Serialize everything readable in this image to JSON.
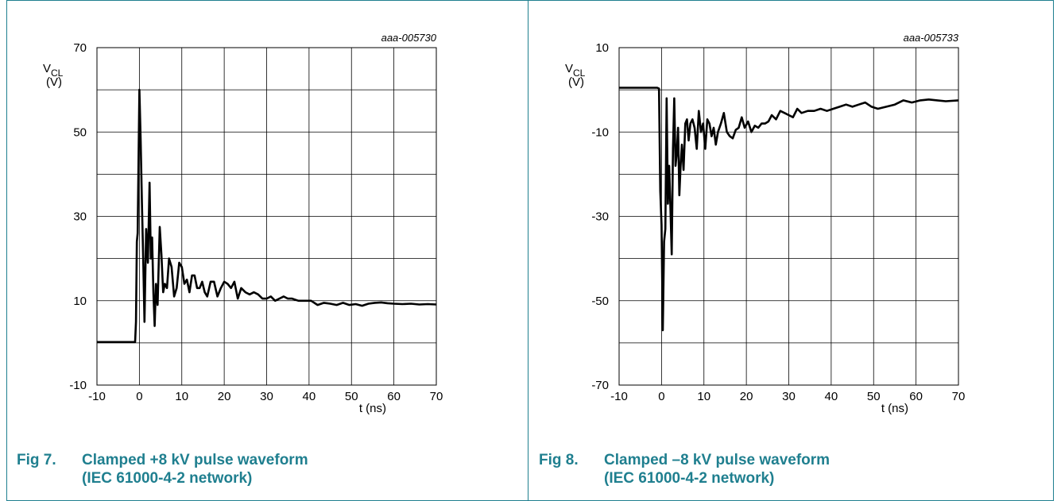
{
  "figures": [
    {
      "fig_label": "Fig 7.",
      "title_line1": "Clamped +8 kV pulse waveform",
      "title_line2": "(IEC 61000-4-2 network)"
    },
    {
      "fig_label": "Fig 8.",
      "title_line1": "Clamped –8 kV pulse waveform",
      "title_line2": "(IEC 61000-4-2 network)"
    }
  ],
  "chart_data": [
    {
      "type": "line",
      "id_label": "aaa-005730",
      "ylabel_main": "V",
      "ylabel_sub": "CL",
      "ylabel_unit": "(V)",
      "xlabel": "t (ns)",
      "xlim": [
        -10,
        70
      ],
      "ylim": [
        -10,
        70
      ],
      "xticks": [
        "-10",
        "0",
        "10",
        "20",
        "30",
        "40",
        "50",
        "60",
        "70"
      ],
      "yticks": [
        "-10",
        "10",
        "30",
        "50",
        "70"
      ],
      "grid": true,
      "x": [
        -10,
        -1,
        -0.8,
        -0.6,
        -0.4,
        0,
        0.3,
        0.6,
        0.9,
        1.2,
        1.6,
        2.0,
        2.4,
        2.7,
        3.0,
        3.3,
        3.6,
        3.9,
        4.3,
        4.8,
        5.2,
        5.6,
        6.0,
        6.5,
        7.0,
        7.6,
        8.2,
        8.8,
        9.4,
        10.0,
        10.6,
        11.2,
        11.8,
        12.4,
        13.0,
        13.6,
        14.2,
        14.8,
        15.4,
        16.0,
        16.8,
        17.6,
        18.4,
        19.2,
        20.0,
        20.8,
        21.6,
        22.4,
        23.2,
        24.0,
        25.0,
        26.0,
        27.0,
        28.0,
        29.0,
        30.0,
        31.0,
        32.0,
        33.0,
        34.0,
        35.0,
        36.0,
        37.5,
        39.0,
        40.5,
        42.0,
        43.5,
        45.0,
        46.5,
        48.0,
        49.5,
        51.0,
        52.5,
        54.0,
        55.5,
        57.0,
        58.5,
        60.0,
        62.0,
        64.0,
        66.0,
        68.0,
        70.0
      ],
      "values": [
        0.2,
        0.2,
        5,
        24,
        26,
        60,
        48,
        33,
        20,
        5,
        27,
        19,
        38,
        20,
        25,
        12,
        4,
        14,
        9,
        27.5,
        21,
        12,
        14,
        13,
        20,
        18,
        11,
        13,
        19,
        18,
        14,
        15,
        12,
        16,
        16,
        13,
        13,
        14.5,
        12,
        11,
        14.5,
        14.5,
        11,
        13,
        14.5,
        14,
        13,
        14.5,
        10.5,
        13,
        12,
        11.5,
        12,
        11.5,
        10.5,
        10.5,
        11,
        10,
        10.5,
        11,
        10.5,
        10.5,
        10,
        10,
        10,
        9,
        9.5,
        9.3,
        9,
        9.5,
        9,
        9.2,
        8.8,
        9.3,
        9.5,
        9.6,
        9.4,
        9.3,
        9.2,
        9.3,
        9.1,
        9.2,
        9.1
      ]
    },
    {
      "type": "line",
      "id_label": "aaa-005733",
      "ylabel_main": "V",
      "ylabel_sub": "CL",
      "ylabel_unit": "(V)",
      "xlabel": "t (ns)",
      "xlim": [
        -10,
        70
      ],
      "ylim": [
        -70,
        10
      ],
      "xticks": [
        "-10",
        "0",
        "10",
        "20",
        "30",
        "40",
        "50",
        "60",
        "70"
      ],
      "yticks": [
        "-70",
        "-50",
        "-30",
        "-10",
        "10"
      ],
      "grid": true,
      "x": [
        -10,
        -1,
        -0.6,
        -0.3,
        0,
        0.3,
        0.6,
        0.9,
        1.2,
        1.5,
        1.8,
        2.1,
        2.4,
        2.7,
        3.0,
        3.3,
        3.6,
        3.9,
        4.2,
        4.5,
        4.8,
        5.2,
        5.6,
        6.0,
        6.4,
        6.8,
        7.3,
        7.8,
        8.3,
        8.8,
        9.3,
        9.8,
        10.3,
        10.8,
        11.3,
        11.8,
        12.3,
        12.8,
        13.3,
        14.0,
        14.7,
        15.4,
        16.1,
        16.8,
        17.5,
        18.2,
        18.9,
        19.6,
        20.4,
        21.2,
        22.0,
        22.8,
        23.6,
        24.4,
        25.2,
        26.0,
        27.0,
        28.0,
        29.0,
        30.0,
        31.0,
        32.0,
        33.0,
        34.5,
        36.0,
        37.5,
        39.0,
        40.5,
        42.0,
        43.5,
        45.0,
        46.5,
        48.0,
        49.5,
        51.0,
        53.0,
        55.0,
        57.0,
        59.0,
        61.0,
        63.0,
        65.0,
        67.0,
        70.0
      ],
      "values": [
        0.5,
        0.5,
        0.3,
        -24,
        -32,
        -57,
        -36,
        -33,
        -2,
        -27,
        -18,
        -28,
        -39,
        -14,
        -2,
        -18,
        -15,
        -9,
        -25,
        -18,
        -13,
        -19,
        -8,
        -7,
        -12,
        -8,
        -7,
        -9,
        -14,
        -5,
        -10,
        -8,
        -14,
        -7,
        -8,
        -11,
        -9,
        -13,
        -10,
        -8,
        -5.5,
        -10,
        -11,
        -11.5,
        -9.5,
        -9,
        -6.5,
        -9,
        -7.5,
        -10,
        -8.5,
        -9,
        -8,
        -8,
        -7.5,
        -6,
        -7,
        -5,
        -5.5,
        -6,
        -6.5,
        -4.5,
        -5.5,
        -5,
        -5,
        -4.5,
        -5,
        -4.5,
        -4,
        -3.5,
        -4,
        -3.5,
        -3,
        -4,
        -4.5,
        -4,
        -3.5,
        -2.5,
        -3,
        -2.5,
        -2.3,
        -2.5,
        -2.7,
        -2.5
      ]
    }
  ]
}
